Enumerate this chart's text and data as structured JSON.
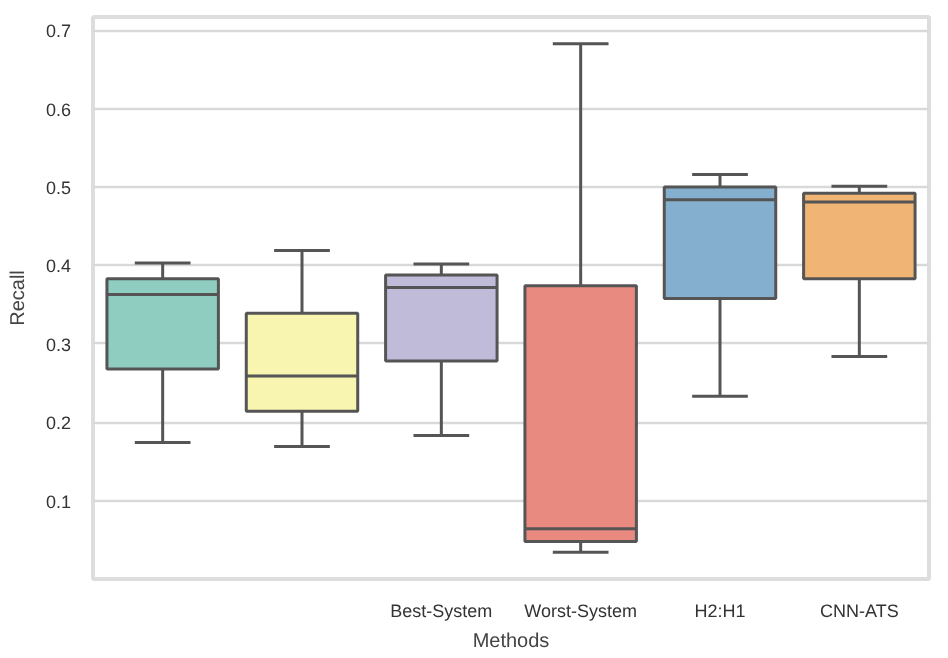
{
  "chart_data": {
    "type": "box",
    "xlabel": "Methods",
    "ylabel": "Recall",
    "categories": [
      null,
      null,
      "Best-System",
      "Worst-System",
      "H2:H1",
      "CNN-ATS"
    ],
    "colors": [
      "#8ecdc0",
      "#f7f5b0",
      "#bfbbd8",
      "#e98a80",
      "#84afcf",
      "#f0b474"
    ],
    "boxes": [
      {
        "low": 0.174,
        "q1": 0.268,
        "median": 0.363,
        "q3": 0.383,
        "high": 0.403
      },
      {
        "low": 0.169,
        "q1": 0.214,
        "median": 0.259,
        "q3": 0.339,
        "high": 0.419
      },
      {
        "low": 0.183,
        "q1": 0.278,
        "median": 0.372,
        "q3": 0.388,
        "high": 0.402
      },
      {
        "low": 0.034,
        "q1": 0.048,
        "median": 0.064,
        "q3": 0.374,
        "high": 0.683
      },
      {
        "low": 0.233,
        "q1": 0.358,
        "median": 0.484,
        "q3": 0.5,
        "high": 0.516
      },
      {
        "low": 0.284,
        "q1": 0.383,
        "median": 0.481,
        "q3": 0.492,
        "high": 0.501
      }
    ],
    "ylim": [
      0.0,
      0.717
    ],
    "yticks": [
      0.1,
      0.2,
      0.3,
      0.4,
      0.5,
      0.6,
      0.7
    ],
    "grid": "y"
  }
}
